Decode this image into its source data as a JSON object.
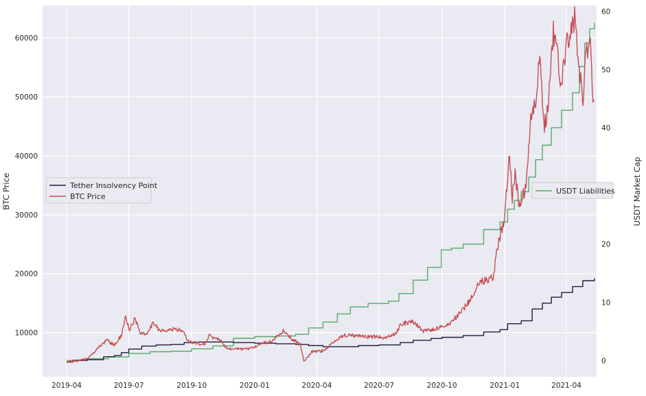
{
  "chart_data": {
    "type": "line",
    "plot_background": "#eaeaf2",
    "grid": true,
    "x_ticks": [
      "2019-04",
      "2019-07",
      "2019-10",
      "2020-01",
      "2020-04",
      "2020-07",
      "2020-10",
      "2021-01",
      "2021-04"
    ],
    "y_left": {
      "label": "BTC Price",
      "ticks": [
        "10000",
        "20000",
        "30000",
        "40000",
        "50000",
        "60000"
      ],
      "lim": [
        2500,
        65500
      ]
    },
    "y_right": {
      "label": "USDT Market Cap",
      "ticks": [
        "0",
        "10",
        "20",
        "30",
        "40",
        "50",
        "60"
      ],
      "lim": [
        -2.8,
        61
      ]
    },
    "legend_left": {
      "placement": "center-left",
      "entries": [
        {
          "label": "Tether Insolvency Point",
          "color": "#1c1c3c"
        },
        {
          "label": "BTC Price",
          "color": "#c44e52"
        }
      ]
    },
    "legend_right": {
      "placement": "center-right",
      "entries": [
        {
          "label": "USDT Liabilities",
          "color": "#55a868"
        }
      ]
    },
    "series": [
      {
        "name": "Tether Insolvency Point",
        "axis": "left",
        "color": "#1c1c3c",
        "points": [
          [
            "2019-04-01",
            5000
          ],
          [
            "2019-04-10",
            5300
          ],
          [
            "2019-05-01",
            5400
          ],
          [
            "2019-05-15",
            5400
          ],
          [
            "2019-05-25",
            5900
          ],
          [
            "2019-06-10",
            6100
          ],
          [
            "2019-06-20",
            6600
          ],
          [
            "2019-07-01",
            7200
          ],
          [
            "2019-07-20",
            7700
          ],
          [
            "2019-08-10",
            7900
          ],
          [
            "2019-09-01",
            8000
          ],
          [
            "2019-09-20",
            8300
          ],
          [
            "2019-10-10",
            8400
          ],
          [
            "2019-11-01",
            8400
          ],
          [
            "2019-12-01",
            8300
          ],
          [
            "2020-01-01",
            8200
          ],
          [
            "2020-02-01",
            8100
          ],
          [
            "2020-03-01",
            8000
          ],
          [
            "2020-03-20",
            7800
          ],
          [
            "2020-04-10",
            7600
          ],
          [
            "2020-05-01",
            7600
          ],
          [
            "2020-06-01",
            7800
          ],
          [
            "2020-07-01",
            7900
          ],
          [
            "2020-08-01",
            8300
          ],
          [
            "2020-08-20",
            8700
          ],
          [
            "2020-09-15",
            9000
          ],
          [
            "2020-10-01",
            9200
          ],
          [
            "2020-11-01",
            9500
          ],
          [
            "2020-12-01",
            10100
          ],
          [
            "2020-12-25",
            10500
          ],
          [
            "2021-01-05",
            11500
          ],
          [
            "2021-01-25",
            12000
          ],
          [
            "2021-02-10",
            14000
          ],
          [
            "2021-02-25",
            15000
          ],
          [
            "2021-03-10",
            16000
          ],
          [
            "2021-03-25",
            16800
          ],
          [
            "2021-04-10",
            17800
          ],
          [
            "2021-04-25",
            18800
          ],
          [
            "2021-05-12",
            19200
          ]
        ]
      },
      {
        "name": "BTC Price",
        "axis": "left",
        "color": "#c44e52",
        "points": [
          [
            "2019-04-01",
            5000
          ],
          [
            "2019-04-15",
            5200
          ],
          [
            "2019-05-01",
            5500
          ],
          [
            "2019-05-10",
            6400
          ],
          [
            "2019-05-20",
            7800
          ],
          [
            "2019-05-30",
            8700
          ],
          [
            "2019-06-10",
            7900
          ],
          [
            "2019-06-20",
            9500
          ],
          [
            "2019-06-26",
            12800
          ],
          [
            "2019-07-02",
            10400
          ],
          [
            "2019-07-10",
            12400
          ],
          [
            "2019-07-18",
            9800
          ],
          [
            "2019-07-28",
            9600
          ],
          [
            "2019-08-06",
            11800
          ],
          [
            "2019-08-15",
            10300
          ],
          [
            "2019-08-25",
            10200
          ],
          [
            "2019-09-05",
            10600
          ],
          [
            "2019-09-20",
            10200
          ],
          [
            "2019-09-25",
            8500
          ],
          [
            "2019-10-10",
            8200
          ],
          [
            "2019-10-20",
            8000
          ],
          [
            "2019-10-26",
            9500
          ],
          [
            "2019-11-10",
            8800
          ],
          [
            "2019-11-22",
            7300
          ],
          [
            "2019-12-10",
            7200
          ],
          [
            "2019-12-25",
            7300
          ],
          [
            "2020-01-08",
            8000
          ],
          [
            "2020-01-25",
            8500
          ],
          [
            "2020-02-12",
            10300
          ],
          [
            "2020-02-26",
            8800
          ],
          [
            "2020-03-08",
            8000
          ],
          [
            "2020-03-13",
            5000
          ],
          [
            "2020-03-25",
            6700
          ],
          [
            "2020-04-10",
            6900
          ],
          [
            "2020-04-30",
            8800
          ],
          [
            "2020-05-10",
            9500
          ],
          [
            "2020-06-01",
            9500
          ],
          [
            "2020-06-20",
            9300
          ],
          [
            "2020-07-10",
            9200
          ],
          [
            "2020-07-25",
            9700
          ],
          [
            "2020-08-02",
            11500
          ],
          [
            "2020-08-20",
            11800
          ],
          [
            "2020-09-05",
            10200
          ],
          [
            "2020-09-25",
            10700
          ],
          [
            "2020-10-10",
            11300
          ],
          [
            "2020-10-25",
            13000
          ],
          [
            "2020-11-10",
            15300
          ],
          [
            "2020-11-25",
            18500
          ],
          [
            "2020-12-05",
            19000
          ],
          [
            "2020-12-15",
            19400
          ],
          [
            "2020-12-20",
            23700
          ],
          [
            "2020-12-31",
            29000
          ],
          [
            "2021-01-08",
            40700
          ],
          [
            "2021-01-12",
            33000
          ],
          [
            "2021-01-16",
            37500
          ],
          [
            "2021-01-22",
            31000
          ],
          [
            "2021-01-28",
            33500
          ],
          [
            "2021-02-02",
            35500
          ],
          [
            "2021-02-08",
            46500
          ],
          [
            "2021-02-16",
            49000
          ],
          [
            "2021-02-21",
            57400
          ],
          [
            "2021-02-28",
            45000
          ],
          [
            "2021-03-05",
            48500
          ],
          [
            "2021-03-13",
            61200
          ],
          [
            "2021-03-18",
            57500
          ],
          [
            "2021-03-25",
            52000
          ],
          [
            "2021-04-02",
            59000
          ],
          [
            "2021-04-13",
            63500
          ],
          [
            "2021-04-20",
            55000
          ],
          [
            "2021-04-25",
            49000
          ],
          [
            "2021-04-30",
            57800
          ],
          [
            "2021-05-07",
            58500
          ],
          [
            "2021-05-10",
            49500
          ],
          [
            "2021-05-12",
            49500
          ]
        ]
      },
      {
        "name": "USDT Liabilities",
        "axis": "right",
        "color": "#55a868",
        "points": [
          [
            "2019-04-01",
            0
          ],
          [
            "2019-05-01",
            0.3
          ],
          [
            "2019-06-01",
            0.6
          ],
          [
            "2019-07-01",
            1.2
          ],
          [
            "2019-08-01",
            1.5
          ],
          [
            "2019-09-01",
            1.6
          ],
          [
            "2019-10-01",
            2.0
          ],
          [
            "2019-11-01",
            2.5
          ],
          [
            "2019-12-01",
            3.8
          ],
          [
            "2020-01-01",
            4.1
          ],
          [
            "2020-02-01",
            4.2
          ],
          [
            "2020-03-01",
            4.5
          ],
          [
            "2020-03-20",
            5.6
          ],
          [
            "2020-04-10",
            6.6
          ],
          [
            "2020-05-01",
            8.0
          ],
          [
            "2020-05-20",
            9.2
          ],
          [
            "2020-06-15",
            9.8
          ],
          [
            "2020-07-15",
            10.2
          ],
          [
            "2020-07-30",
            11.5
          ],
          [
            "2020-08-20",
            13.8
          ],
          [
            "2020-09-10",
            16.0
          ],
          [
            "2020-09-30",
            19.0
          ],
          [
            "2020-10-15",
            19.3
          ],
          [
            "2020-11-01",
            20.0
          ],
          [
            "2020-12-01",
            22.5
          ],
          [
            "2020-12-25",
            23.8
          ],
          [
            "2021-01-05",
            26.0
          ],
          [
            "2021-01-15",
            27.5
          ],
          [
            "2021-01-25",
            29.0
          ],
          [
            "2021-02-05",
            31.5
          ],
          [
            "2021-02-15",
            34.5
          ],
          [
            "2021-02-25",
            37.0
          ],
          [
            "2021-03-10",
            40.0
          ],
          [
            "2021-03-25",
            43.0
          ],
          [
            "2021-04-10",
            46.0
          ],
          [
            "2021-04-20",
            50.5
          ],
          [
            "2021-04-28",
            54.5
          ],
          [
            "2021-05-05",
            57.0
          ],
          [
            "2021-05-12",
            58.0
          ]
        ]
      }
    ]
  }
}
